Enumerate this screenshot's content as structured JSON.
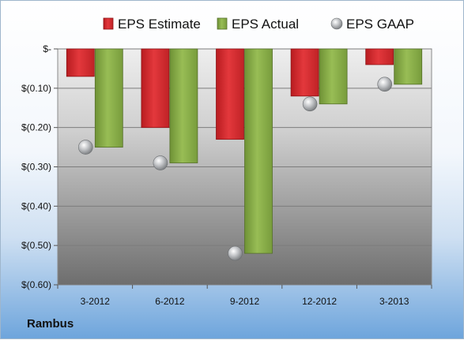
{
  "company": "Rambus",
  "colors": {
    "estimate": "#d7262b",
    "actual": "#84a844",
    "gaap": "#a8acb0"
  },
  "chart_data": {
    "type": "bar",
    "categories": [
      "3-2012",
      "6-2012",
      "9-2012",
      "12-2012",
      "3-2013"
    ],
    "series": [
      {
        "name": "EPS Estimate",
        "marker": "bar",
        "values": [
          -0.07,
          -0.2,
          -0.23,
          -0.12,
          -0.04
        ]
      },
      {
        "name": "EPS Actual",
        "marker": "bar",
        "values": [
          -0.25,
          -0.29,
          -0.52,
          -0.14,
          -0.09
        ]
      },
      {
        "name": "EPS GAAP",
        "marker": "sphere",
        "values": [
          -0.25,
          -0.29,
          -0.52,
          -0.14,
          -0.09
        ]
      }
    ],
    "ylim": [
      -0.6,
      0
    ],
    "yticks": [
      0,
      -0.1,
      -0.2,
      -0.3,
      -0.4,
      -0.5,
      -0.6
    ],
    "ytick_labels": [
      "$-",
      "$(0.10)",
      "$(0.20)",
      "$(0.30)",
      "$(0.40)",
      "$(0.50)",
      "$(0.60)"
    ],
    "legend_position": "top",
    "grid": true
  }
}
